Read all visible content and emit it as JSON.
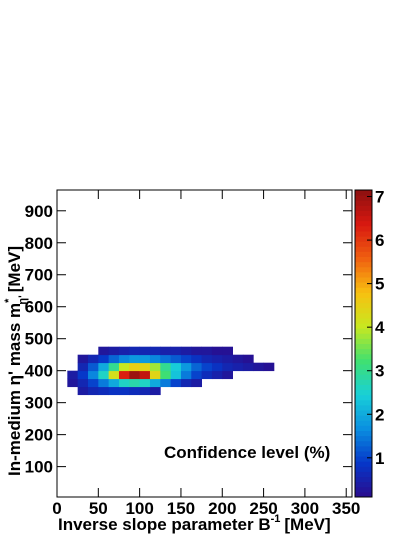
{
  "chart_data": {
    "type": "heatmap",
    "x_label": {
      "text": "Inverse slope parameter   B",
      "sup": "-1",
      "unit": "[MeV]"
    },
    "y_label": {
      "text": "In-medium η' mass   m",
      "sup": "*",
      "sub": "η'",
      "unit": "[MeV]"
    },
    "annotation": "Confidence level (%)",
    "xlim": [
      0,
      357
    ],
    "xticks": [
      0,
      50,
      100,
      150,
      200,
      250,
      300,
      350
    ],
    "ylim": [
      5,
      965
    ],
    "yticks": [
      100,
      200,
      300,
      400,
      500,
      600,
      700,
      800,
      900
    ],
    "zlim": [
      0.1,
      7.15
    ],
    "zticks": [
      1,
      2,
      3,
      4,
      5,
      6,
      7
    ],
    "x_bins": [
      12.5,
      25,
      37.5,
      50,
      62.5,
      75,
      87.5,
      100,
      112.5,
      125,
      137.5,
      150,
      162.5,
      175,
      187.5,
      200,
      212.5,
      225,
      237.5,
      250,
      262.5,
      275
    ],
    "y_bins": [
      325,
      350,
      375,
      400,
      425,
      450,
      475
    ],
    "z": [
      [
        null,
        0.4,
        0.6,
        0.7,
        0.8,
        0.8,
        0.7,
        0.6,
        0.4,
        null,
        null,
        null,
        null,
        null,
        null,
        null,
        null,
        null,
        null,
        null,
        null
      ],
      [
        0.3,
        0.6,
        1.0,
        1.5,
        2.0,
        2.6,
        2.8,
        2.6,
        2.0,
        1.5,
        1.0,
        0.6,
        0.4,
        null,
        null,
        null,
        null,
        null,
        null,
        null,
        null
      ],
      [
        0.4,
        0.9,
        1.6,
        2.6,
        4.2,
        6.3,
        7.0,
        6.6,
        4.4,
        3.2,
        2.3,
        1.5,
        1.0,
        0.7,
        0.5,
        0.3,
        null,
        null,
        null,
        null,
        null
      ],
      [
        null,
        0.6,
        1.2,
        2.0,
        3.0,
        4.0,
        4.5,
        4.4,
        3.8,
        3.0,
        2.4,
        1.8,
        1.3,
        1.0,
        0.8,
        0.6,
        0.5,
        0.4,
        0.3,
        0.2,
        null
      ],
      [
        null,
        0.3,
        0.6,
        0.9,
        1.3,
        1.6,
        1.8,
        1.8,
        1.6,
        1.4,
        1.2,
        1.0,
        0.8,
        0.6,
        0.5,
        0.4,
        0.3,
        0.2,
        null,
        null,
        null
      ],
      [
        null,
        null,
        null,
        0.3,
        0.4,
        0.5,
        0.6,
        0.6,
        0.6,
        0.5,
        0.5,
        0.4,
        0.3,
        0.3,
        0.2,
        0.2,
        null,
        null,
        null,
        null,
        null
      ]
    ],
    "colorscale": [
      "#2a0c8c",
      "#0636c8",
      "#0a8ee0",
      "#18d0d8",
      "#40e070",
      "#c8e820",
      "#f8c010",
      "#f06010",
      "#d81810",
      "#8c1010"
    ]
  }
}
